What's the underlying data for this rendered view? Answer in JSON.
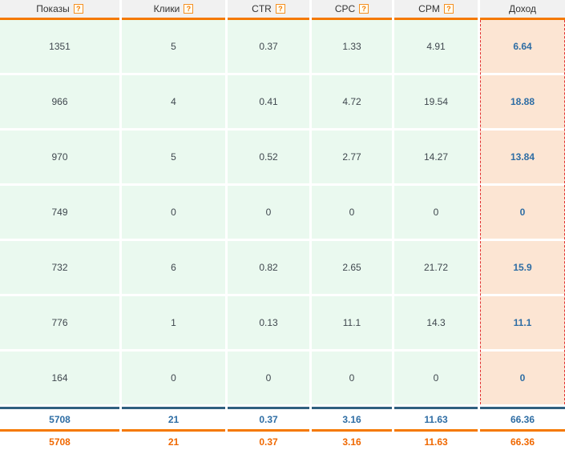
{
  "colors": {
    "accent_orange": "#f57900",
    "mint_cell_bg": "#eaf9ef",
    "peach_cell_bg": "#fce5d3",
    "dashed_red_border": "#e23131",
    "summary_blue_border": "#30607f",
    "value_blue_text": "#2e6da4",
    "grand_total_orange_text": "#f06800",
    "header_bg": "#f1f1f1"
  },
  "header": {
    "help_glyph": "?",
    "columns": [
      {
        "label": "Показы",
        "has_help": true
      },
      {
        "label": "Клики",
        "has_help": true
      },
      {
        "label": "CTR",
        "has_help": true
      },
      {
        "label": "CPC",
        "has_help": true
      },
      {
        "label": "CPM",
        "has_help": true
      },
      {
        "label": "Доход",
        "has_help": false
      }
    ]
  },
  "body": {
    "rows": [
      {
        "cells": [
          "1351",
          "5",
          "0.37",
          "1.33",
          "4.91",
          "6.64"
        ]
      },
      {
        "cells": [
          "966",
          "4",
          "0.41",
          "4.72",
          "19.54",
          "18.88"
        ]
      },
      {
        "cells": [
          "970",
          "5",
          "0.52",
          "2.77",
          "14.27",
          "13.84"
        ]
      },
      {
        "cells": [
          "749",
          "0",
          "0",
          "0",
          "0",
          "0"
        ]
      },
      {
        "cells": [
          "732",
          "6",
          "0.82",
          "2.65",
          "21.72",
          "15.9"
        ]
      },
      {
        "cells": [
          "776",
          "1",
          "0.13",
          "11.1",
          "14.3",
          "11.1"
        ]
      },
      {
        "cells": [
          "164",
          "0",
          "0",
          "0",
          "0",
          "0"
        ]
      }
    ]
  },
  "totals": {
    "summary_row": [
      "5708",
      "21",
      "0.37",
      "3.16",
      "11.63",
      "66.36"
    ],
    "grand_total_row": [
      "5708",
      "21",
      "0.37",
      "3.16",
      "11.63",
      "66.36"
    ]
  }
}
